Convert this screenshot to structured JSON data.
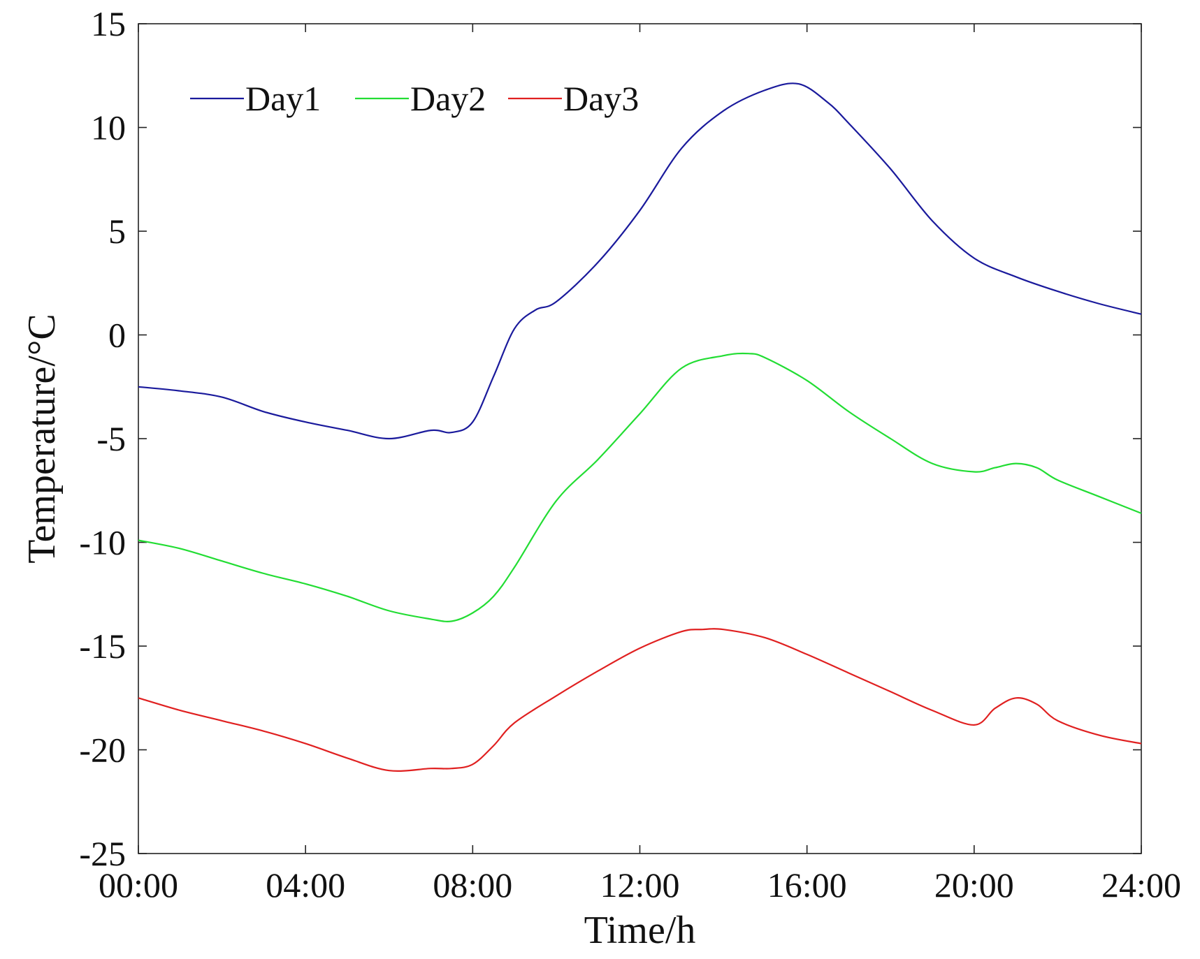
{
  "chart_data": {
    "type": "line",
    "title": "",
    "xlabel": "Time/h",
    "ylabel": "Temperature/°C",
    "xlim": [
      0,
      24
    ],
    "ylim": [
      -25,
      15
    ],
    "grid": false,
    "legend_position": "top-left",
    "x_ticks": [
      0,
      4,
      8,
      12,
      16,
      20,
      24
    ],
    "x_tick_labels": [
      "00:00",
      "04:00",
      "08:00",
      "12:00",
      "16:00",
      "20:00",
      "24:00"
    ],
    "y_ticks": [
      15,
      10,
      5,
      0,
      -5,
      -10,
      -15,
      -20,
      -25
    ],
    "y_tick_labels": [
      "15",
      "10",
      "5",
      "0",
      "-5",
      "-10",
      "-15",
      "-20",
      "-25"
    ],
    "series": [
      {
        "name": "Day1",
        "color": "#1a1a9c",
        "x": [
          0,
          1,
          2,
          3,
          4,
          5,
          6,
          7,
          7.5,
          8,
          8.5,
          9,
          9.5,
          10,
          11,
          12,
          13,
          14,
          15,
          15.8,
          16.5,
          17,
          18,
          19,
          20,
          21,
          22,
          23,
          24
        ],
        "y": [
          -2.5,
          -2.7,
          -3.0,
          -3.7,
          -4.2,
          -4.6,
          -5.0,
          -4.6,
          -4.7,
          -4.2,
          -2.0,
          0.3,
          1.2,
          1.6,
          3.5,
          6.0,
          9.0,
          10.8,
          11.8,
          12.1,
          11.2,
          10.2,
          8.0,
          5.5,
          3.7,
          2.8,
          2.1,
          1.5,
          1.0
        ]
      },
      {
        "name": "Day2",
        "color": "#22dd33",
        "x": [
          0,
          1,
          2,
          3,
          4,
          5,
          6,
          7,
          7.5,
          8,
          8.5,
          9,
          10,
          11,
          12,
          13,
          14,
          14.6,
          15,
          16,
          17,
          18,
          19,
          20,
          20.5,
          21,
          21.5,
          22,
          23,
          24
        ],
        "y": [
          -9.9,
          -10.3,
          -10.9,
          -11.5,
          -12.0,
          -12.6,
          -13.3,
          -13.7,
          -13.8,
          -13.4,
          -12.6,
          -11.2,
          -8.0,
          -6.0,
          -3.8,
          -1.6,
          -1.0,
          -0.9,
          -1.1,
          -2.2,
          -3.7,
          -5.0,
          -6.2,
          -6.6,
          -6.4,
          -6.2,
          -6.4,
          -7.0,
          -7.8,
          -8.6
        ]
      },
      {
        "name": "Day3",
        "color": "#e02020",
        "x": [
          0,
          1,
          2,
          3,
          4,
          5,
          6,
          7,
          7.5,
          8,
          8.5,
          9,
          10,
          11,
          12,
          13,
          13.5,
          14,
          15,
          16,
          17,
          18,
          19,
          20,
          20.5,
          21,
          21.5,
          22,
          23,
          24
        ],
        "y": [
          -17.5,
          -18.1,
          -18.6,
          -19.1,
          -19.7,
          -20.4,
          -21.0,
          -20.9,
          -20.9,
          -20.7,
          -19.8,
          -18.7,
          -17.4,
          -16.2,
          -15.1,
          -14.3,
          -14.2,
          -14.2,
          -14.6,
          -15.4,
          -16.3,
          -17.2,
          -18.1,
          -18.8,
          -18.0,
          -17.5,
          -17.8,
          -18.6,
          -19.3,
          -19.7
        ]
      }
    ]
  }
}
